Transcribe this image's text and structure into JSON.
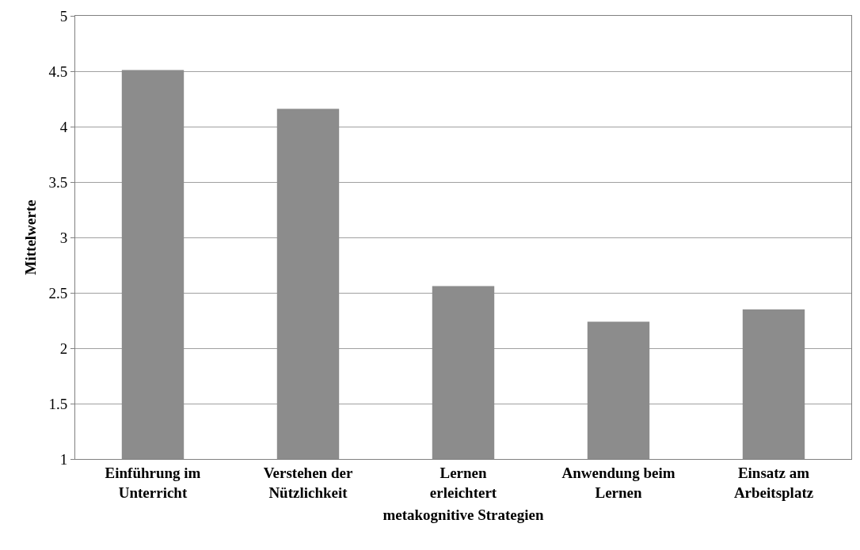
{
  "chart_data": {
    "type": "bar",
    "xlabel": "metakognitive Strategien",
    "ylabel": "Mittelwerte",
    "categories": [
      "Einführung im Unterricht",
      "Verstehen der Nützlichkeit",
      "Lernen erleichtert",
      "Anwendung beim Lernen",
      "Einsatz am Arbeitsplatz"
    ],
    "values": [
      4.51,
      4.16,
      2.56,
      2.24,
      2.35
    ],
    "color": "#8c8c8c",
    "ylim": [
      1,
      5
    ],
    "yticks": [
      1,
      1.5,
      2,
      2.5,
      3,
      3.5,
      4,
      4.5,
      5
    ],
    "grid": "y"
  }
}
